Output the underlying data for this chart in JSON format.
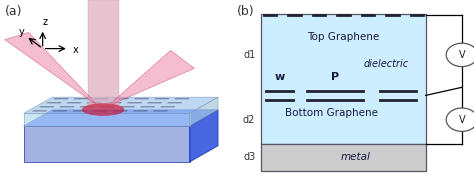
{
  "fig_width": 4.74,
  "fig_height": 1.8,
  "dpi": 100,
  "panel_a_label": "(a)",
  "panel_b_label": "(b)",
  "dielectric_color": "#cceeff",
  "metal_color": "#cccccc",
  "graphene_line_color": "#222233",
  "border_color": "#555566",
  "top_graphene_label": "Top Graphene",
  "dielectric_label": "dielectric",
  "bottom_graphene_label": "Bottom Graphene",
  "metal_label": "metal",
  "w_label": "w",
  "p_label": "P",
  "d1_label": "d",
  "d2_label": "d",
  "d3_label": "d",
  "d1_sub": "1",
  "d2_sub": "2",
  "d3_sub": "3",
  "voltage_label": "V",
  "axis_label_color": "#333333",
  "text_color": "#1a1a3e",
  "voltage_circle_color": "#555555",
  "blue_slab_color": "#2244ff",
  "blue_slab_top_color": "#aaccee",
  "blue_slab_side_color": "#3355dd",
  "blue_slab_front_color": "#99aadd",
  "cone_color": "#ee88aa",
  "cone_edge_color": "#cc3366",
  "cylinder_color": "#ddaabb",
  "focus_color": "#cc1133",
  "ribbon_color": "#444466"
}
